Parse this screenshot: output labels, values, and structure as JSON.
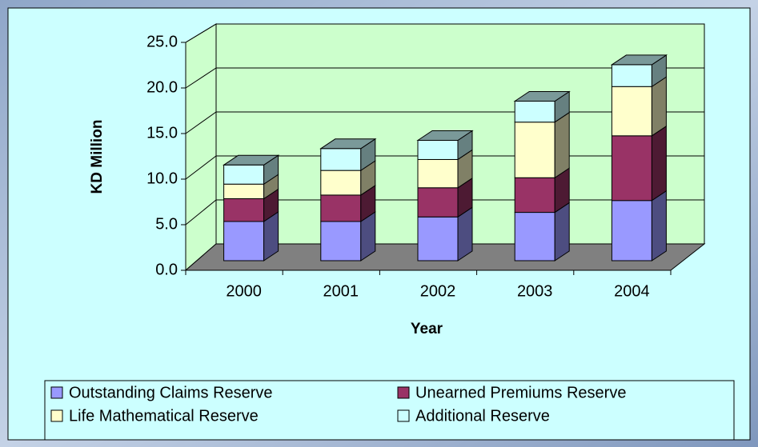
{
  "chart_data": {
    "type": "bar3d_stacked",
    "x_label": "Year",
    "y_label": "KD Million",
    "categories": [
      "2000",
      "2001",
      "2002",
      "2003",
      "2004"
    ],
    "series": [
      {
        "name": "Outstanding Claims Reserve",
        "color": "#9999ff",
        "values": [
          4.3,
          4.3,
          4.8,
          5.3,
          6.6
        ]
      },
      {
        "name": "Unearned Premiums Reserve",
        "color": "#993366",
        "values": [
          2.5,
          2.9,
          3.2,
          3.8,
          7.1
        ]
      },
      {
        "name": "Life Mathematical Reserve",
        "color": "#ffffcc",
        "values": [
          1.6,
          2.7,
          3.1,
          6.1,
          5.4
        ]
      },
      {
        "name": "Additional Reserve",
        "color": "#ccffff",
        "values": [
          2.1,
          2.4,
          2.1,
          2.3,
          2.4
        ]
      }
    ],
    "ylim": [
      0,
      25
    ],
    "yticks": [
      {
        "value": 0,
        "label": "0.0"
      },
      {
        "value": 5,
        "label": "5.0"
      },
      {
        "value": 10,
        "label": "10.0"
      },
      {
        "value": 15,
        "label": "15.0"
      },
      {
        "value": 20,
        "label": "20.0"
      },
      {
        "value": 25,
        "label": "25.0"
      }
    ],
    "grid": true
  }
}
